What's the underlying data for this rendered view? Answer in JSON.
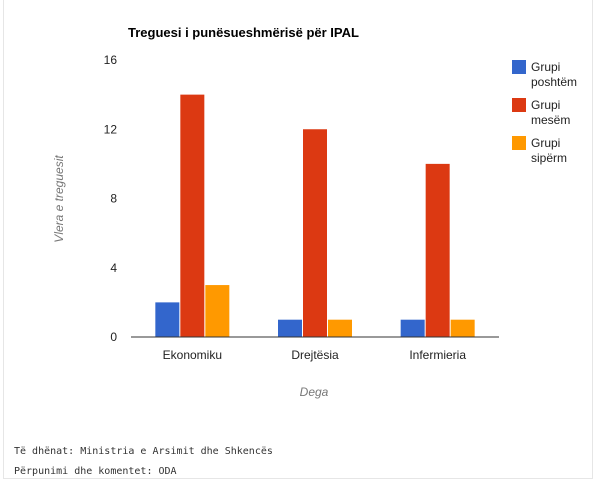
{
  "chart_data": {
    "type": "bar",
    "title": "Treguesi i punësueshmërisë për IPAL",
    "xlabel": "Dega",
    "ylabel": "Vlera e treguesit",
    "categories": [
      "Ekonomiku",
      "Drejtësia",
      "Infermieria"
    ],
    "series": [
      {
        "name": "Grupi poshtëm",
        "values": [
          2,
          1,
          1
        ],
        "color": "#3366cc"
      },
      {
        "name": "Grupi mesëm",
        "values": [
          14,
          12,
          10
        ],
        "color": "#dc3912"
      },
      {
        "name": "Grupi sipërm",
        "values": [
          3,
          1,
          1
        ],
        "color": "#ff9900"
      }
    ],
    "ylim": [
      0,
      16
    ],
    "yticks": [
      0,
      4,
      8,
      12,
      16
    ],
    "grid": false,
    "legend_position": "right"
  },
  "legend_lines": [
    [
      "Grupi",
      "poshtëm"
    ],
    [
      "Grupi",
      "mesëm"
    ],
    [
      "Grupi",
      "sipërm"
    ]
  ],
  "footer": {
    "source": "Të dhënat: Ministria e Arsimit dhe Shkencës",
    "processing": "Përpunimi dhe komentet: ODA"
  }
}
